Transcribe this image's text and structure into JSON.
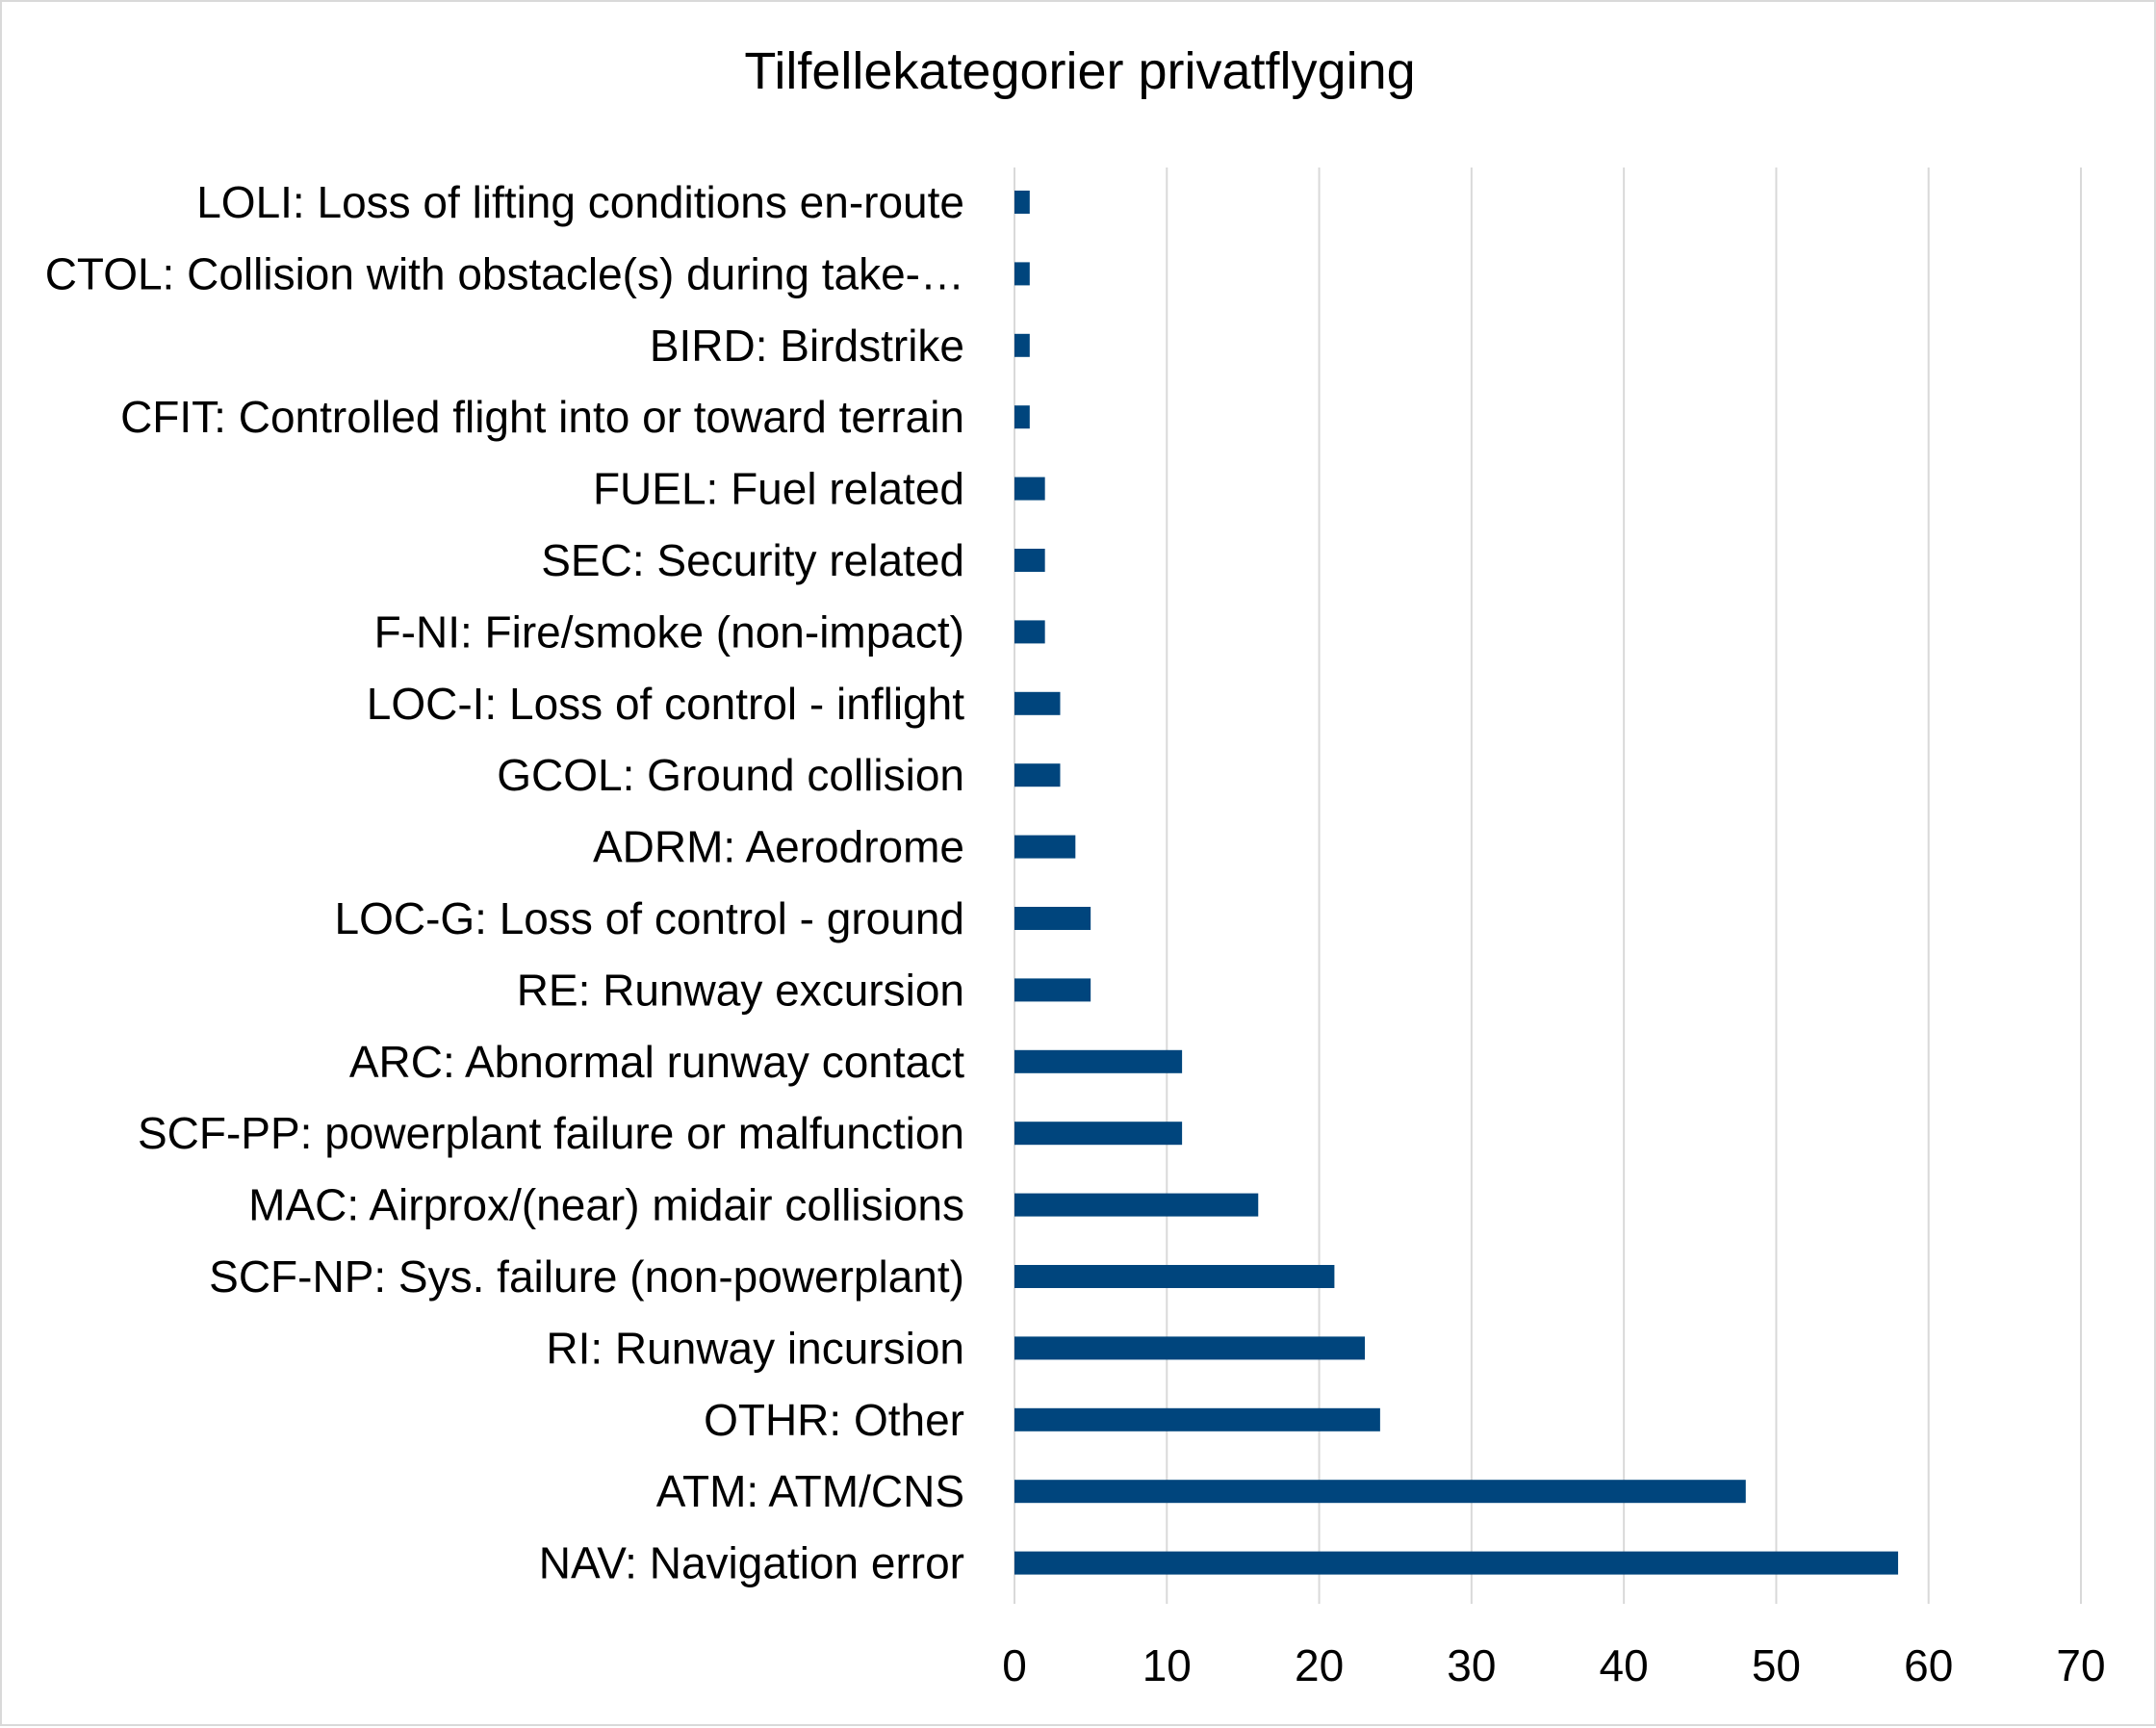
{
  "chart_data": {
    "type": "bar",
    "orientation": "horizontal",
    "title": "Tilfellekategorier privatflyging",
    "xlabel": "",
    "ylabel": "",
    "xlim": [
      0,
      70
    ],
    "xticks": [
      0,
      10,
      20,
      30,
      40,
      50,
      60,
      70
    ],
    "grid": true,
    "legend": "none",
    "bar_color": "#00457d",
    "categories": [
      "LOLI: Loss of lifting conditions en-route",
      "CTOL: Collision with obstacle(s) during take-…",
      "BIRD: Birdstrike",
      "CFIT: Controlled flight into or toward terrain",
      "FUEL: Fuel related",
      "SEC: Security related",
      "F-NI: Fire/smoke (non-impact)",
      "LOC-I: Loss of control - inflight",
      "GCOL: Ground collision",
      "ADRM: Aerodrome",
      "LOC-G: Loss of control - ground",
      "RE: Runway excursion",
      "ARC: Abnormal runway contact",
      "SCF-PP: powerplant failure or malfunction",
      "MAC: Airprox/(near) midair collisions",
      "SCF-NP: Sys. failure (non-powerplant)",
      "RI: Runway incursion",
      "OTHR: Other",
      "ATM: ATM/CNS",
      "NAV: Navigation error"
    ],
    "values": [
      1,
      1,
      1,
      1,
      2,
      2,
      2,
      3,
      3,
      4,
      5,
      5,
      11,
      11,
      16,
      21,
      23,
      24,
      48,
      58
    ]
  }
}
